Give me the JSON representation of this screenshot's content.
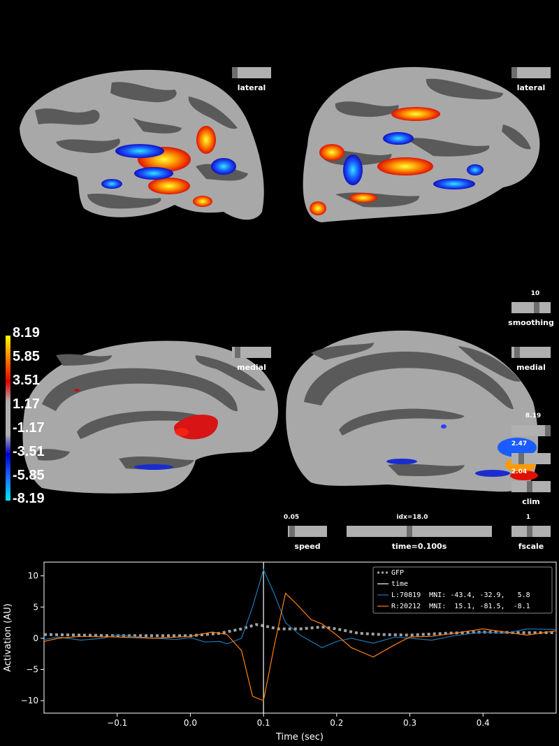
{
  "views": {
    "lh_lateral": "lateral",
    "rh_lateral": "lateral",
    "lh_medial": "medial",
    "rh_medial": "medial"
  },
  "colorbar": {
    "ticks": [
      "8.19",
      "5.85",
      "3.51",
      "1.17",
      "-1.17",
      "-3.51",
      "-5.85",
      "-8.19"
    ]
  },
  "controls": {
    "smoothing": {
      "label": "smoothing",
      "value": "10"
    },
    "clim": {
      "label": "clim",
      "max": "8.19",
      "mid": "2.47",
      "min": "2.04"
    },
    "speed": {
      "label": "speed",
      "value": "0.05"
    },
    "time": {
      "label": "time=0.100s",
      "value": "idx=18.0"
    },
    "fscale": {
      "label": "fscale",
      "value": "1"
    }
  },
  "colors": {
    "gfp": "#a0a0a0",
    "time_line": "#ffffff",
    "left_trace": "#1f77b4",
    "right_trace": "#ff7f0e",
    "sulcus": "#5a5a5a",
    "gyrus": "#a8a8a8"
  },
  "chart_data": {
    "type": "line",
    "xlabel": "Time (sec)",
    "ylabel": "Activation (AU)",
    "xlim": [
      -0.2,
      0.5
    ],
    "ylim": [
      -12,
      12.2
    ],
    "xticks": [
      -0.1,
      0.0,
      0.1,
      0.2,
      0.3,
      0.4
    ],
    "xtick_labels": [
      "−0.1",
      "0.0",
      "0.1",
      "0.2",
      "0.3",
      "0.4"
    ],
    "yticks": [
      -10,
      -5,
      0,
      5,
      10
    ],
    "ytick_labels": [
      "−10",
      "−5",
      "0",
      "5",
      "10"
    ],
    "time_marker": 0.1,
    "legend_position": "upper-right",
    "series": [
      {
        "name": "GFP",
        "style": "dotted",
        "x": [
          -0.2,
          -0.15,
          -0.1,
          -0.05,
          0.0,
          0.04,
          0.07,
          0.09,
          0.1,
          0.12,
          0.15,
          0.18,
          0.2,
          0.23,
          0.26,
          0.3,
          0.35,
          0.4,
          0.45,
          0.5
        ],
        "y": [
          0.6,
          0.5,
          0.4,
          0.4,
          0.4,
          0.8,
          1.5,
          2.2,
          2.0,
          1.5,
          1.5,
          1.8,
          1.5,
          0.8,
          0.6,
          0.5,
          0.8,
          1.0,
          0.9,
          0.9
        ]
      },
      {
        "name": "time",
        "style": "vline",
        "x": [
          0.1,
          0.1
        ],
        "y": [
          -12,
          12.2
        ]
      },
      {
        "name": "L:70819  MNI: -43.4, -32.9,   5.8",
        "style": "solid",
        "x": [
          -0.2,
          -0.18,
          -0.15,
          -0.12,
          -0.1,
          -0.06,
          -0.02,
          0.0,
          0.02,
          0.04,
          0.05,
          0.07,
          0.085,
          0.1,
          0.115,
          0.13,
          0.15,
          0.18,
          0.2,
          0.22,
          0.25,
          0.28,
          0.3,
          0.33,
          0.36,
          0.4,
          0.43,
          0.46,
          0.5
        ],
        "y": [
          -0.2,
          0.2,
          -0.3,
          0.0,
          0.5,
          0.1,
          -0.2,
          0.1,
          -0.6,
          -0.5,
          -0.9,
          0.0,
          5.0,
          11.0,
          7.0,
          2.5,
          0.5,
          -1.5,
          -0.5,
          0.0,
          -0.8,
          0.2,
          0.0,
          -0.3,
          0.4,
          1.0,
          0.8,
          1.5,
          1.4
        ]
      },
      {
        "name": "R:20212  MNI:  15.1, -81.5,  -8.1",
        "style": "solid",
        "x": [
          -0.2,
          -0.18,
          -0.15,
          -0.1,
          -0.05,
          0.0,
          0.03,
          0.05,
          0.07,
          0.085,
          0.1,
          0.115,
          0.13,
          0.145,
          0.165,
          0.18,
          0.2,
          0.22,
          0.25,
          0.28,
          0.3,
          0.33,
          0.36,
          0.4,
          0.43,
          0.46,
          0.5
        ],
        "y": [
          -0.5,
          0.0,
          0.3,
          0.2,
          0.0,
          0.3,
          1.0,
          0.6,
          -2.0,
          -9.3,
          -10.0,
          -1.0,
          7.2,
          5.5,
          3.0,
          2.3,
          0.5,
          -1.5,
          -3.0,
          -1.0,
          0.2,
          0.3,
          0.8,
          1.5,
          1.0,
          0.5,
          1.2
        ]
      }
    ]
  }
}
